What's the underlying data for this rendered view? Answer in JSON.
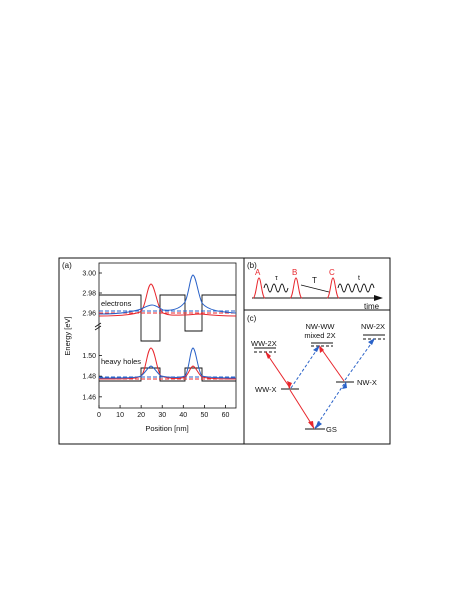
{
  "colors": {
    "red": "#e8262c",
    "blue": "#2a62c8",
    "black": "#111111"
  },
  "panel_a": {
    "label": "(a)",
    "ylabel": "Energy [eV]",
    "xlabel": "Position [nm]",
    "x_ticks": [
      "0",
      "10",
      "20",
      "30",
      "40",
      "50",
      "60"
    ],
    "upper_ticks": [
      "3.00",
      "2.98",
      "2.96"
    ],
    "lower_ticks": [
      "1.50",
      "1.48",
      "1.46"
    ],
    "electrons_label": "electrons",
    "holes_label": "heavy holes",
    "axis_break": "//",
    "upper_ylim": [
      2.948,
      3.01
    ],
    "lower_ylim": [
      1.455,
      1.515
    ],
    "xlim": [
      0,
      65
    ]
  },
  "panel_b": {
    "label": "(b)",
    "pulse_labels": [
      "A",
      "B",
      "C"
    ],
    "tau_label": "τ",
    "T_label": "T",
    "t_label": "t",
    "time_label": "time"
  },
  "panel_c": {
    "label": "(c)",
    "levels": {
      "ww2x": "WW-2X",
      "nwww": "NW-WW",
      "mixed": "mixed 2X",
      "nw2x": "NW-2X",
      "wwx": "WW-X",
      "nwx": "NW-X",
      "gs": "GS"
    }
  }
}
